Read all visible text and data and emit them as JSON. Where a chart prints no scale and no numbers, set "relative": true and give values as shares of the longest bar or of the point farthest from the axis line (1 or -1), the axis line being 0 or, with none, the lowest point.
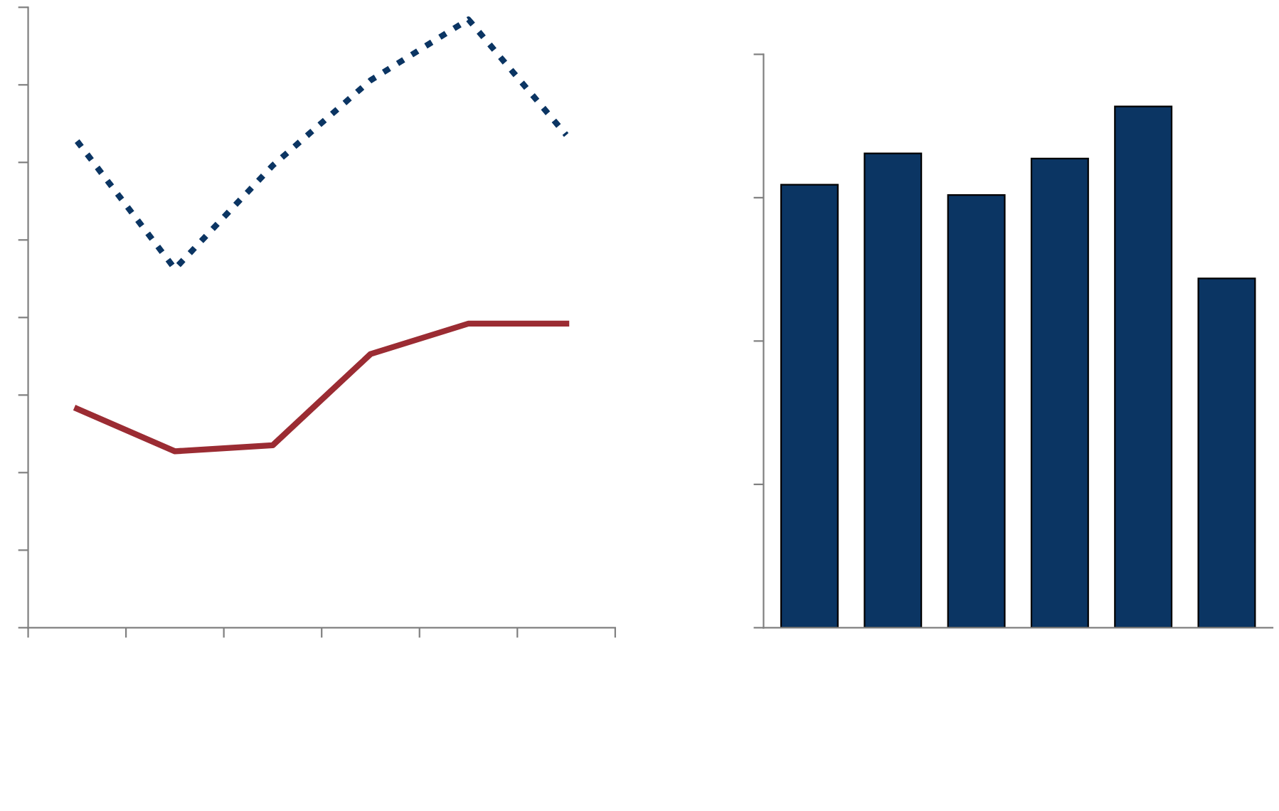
{
  "chart_data": [
    {
      "type": "line",
      "relative": true,
      "categories": [
        null,
        null,
        null,
        null,
        null,
        null
      ],
      "grid": false,
      "legend": false,
      "series": [
        {
          "color": "#0b3563",
          "line_style": "dotted",
          "values": [
            0.8,
            0.59,
            0.76,
            0.9,
            1.0,
            0.81
          ]
        },
        {
          "color": "#9b2c33",
          "line_style": "solid",
          "values": [
            0.36,
            0.29,
            0.3,
            0.45,
            0.5,
            0.5
          ]
        }
      ]
    },
    {
      "type": "bar",
      "relative": true,
      "categories": [
        null,
        null,
        null,
        null,
        null,
        null
      ],
      "grid": false,
      "legend": false,
      "series": [
        {
          "color": "#0b3563",
          "values": [
            0.85,
            0.91,
            0.83,
            0.9,
            1.0,
            0.67
          ]
        }
      ]
    }
  ]
}
